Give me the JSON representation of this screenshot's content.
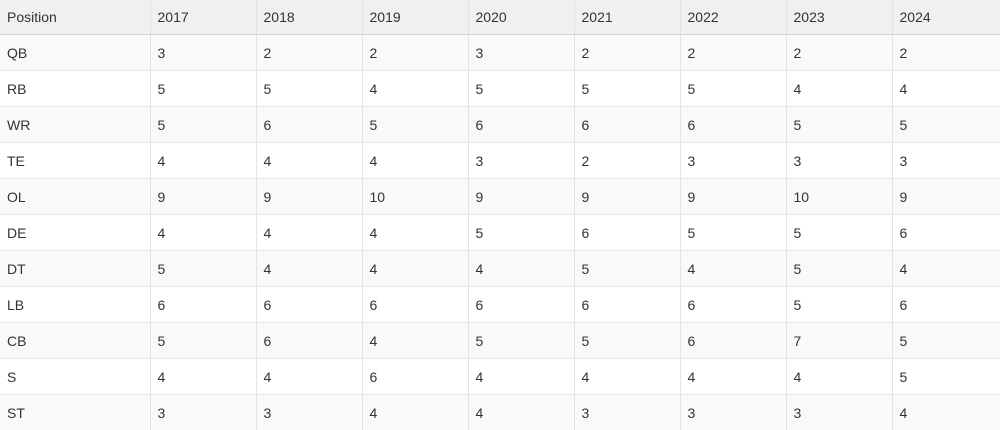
{
  "table": {
    "headers": [
      "Position",
      "2017",
      "2018",
      "2019",
      "2020",
      "2021",
      "2022",
      "2023",
      "2024"
    ],
    "rows": [
      [
        "QB",
        "3",
        "2",
        "2",
        "3",
        "2",
        "2",
        "2",
        "2"
      ],
      [
        "RB",
        "5",
        "5",
        "4",
        "5",
        "5",
        "5",
        "4",
        "4"
      ],
      [
        "WR",
        "5",
        "6",
        "5",
        "6",
        "6",
        "6",
        "5",
        "5"
      ],
      [
        "TE",
        "4",
        "4",
        "4",
        "3",
        "2",
        "3",
        "3",
        "3"
      ],
      [
        "OL",
        "9",
        "9",
        "10",
        "9",
        "9",
        "9",
        "10",
        "9"
      ],
      [
        "DE",
        "4",
        "4",
        "4",
        "5",
        "6",
        "5",
        "5",
        "6"
      ],
      [
        "DT",
        "5",
        "4",
        "4",
        "4",
        "5",
        "4",
        "5",
        "4"
      ],
      [
        "LB",
        "6",
        "6",
        "6",
        "6",
        "6",
        "6",
        "5",
        "6"
      ],
      [
        "CB",
        "5",
        "6",
        "4",
        "5",
        "5",
        "6",
        "7",
        "5"
      ],
      [
        "S",
        "4",
        "4",
        "6",
        "4",
        "4",
        "4",
        "4",
        "5"
      ],
      [
        "ST",
        "3",
        "3",
        "4",
        "4",
        "3",
        "3",
        "3",
        "4"
      ]
    ]
  }
}
